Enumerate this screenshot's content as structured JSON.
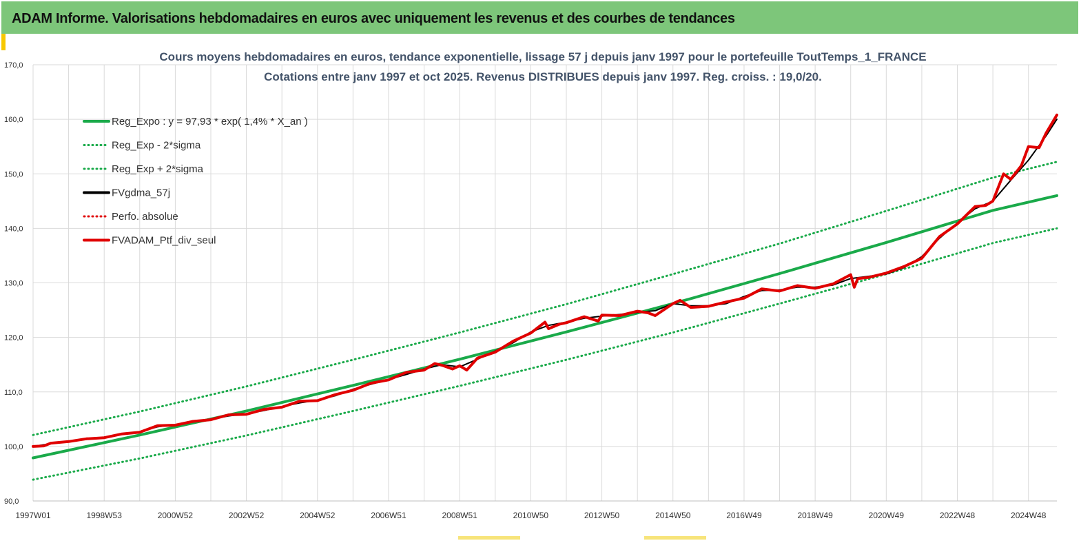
{
  "header": {
    "title": "ADAM Informe. Valorisations hebdomadaires en euros avec uniquement les revenus et des courbes de tendances",
    "background": "#7dc67a"
  },
  "chart_data": {
    "type": "line",
    "title": "Cours moyens hebdomadaires  en euros, tendance exponentielle, lissage 57 j depuis janv 1997 pour le portefeuille ToutTemps_1_FRANCE",
    "subtitle": "Cotations  entre janv 1997 et oct 2025. Revenus DISTRIBUES  depuis janv 1997. Reg. croiss. : 19,0/20.",
    "xlabel": "",
    "ylabel": "",
    "ylim": [
      90,
      170
    ],
    "xlim": [
      1997.0,
      2025.8
    ],
    "grid": true,
    "legend_position": "top-left",
    "x_tick_labels": [
      "1997W01",
      "1998W53",
      "2000W52",
      "2002W52",
      "2004W52",
      "2006W51",
      "2008W51",
      "2010W50",
      "2012W50",
      "2014W50",
      "2016W49",
      "2018W49",
      "2020W49",
      "2022W48",
      "2024W48"
    ],
    "x_tick_values": [
      1997.0,
      1999.0,
      2001.0,
      2003.0,
      2005.0,
      2007.0,
      2009.0,
      2011.0,
      2013.0,
      2015.0,
      2017.0,
      2019.0,
      2021.0,
      2023.0,
      2025.0
    ],
    "y_tick_labels": [
      "90,0",
      "100,0",
      "110,0",
      "120,0",
      "130,0",
      "140,0",
      "150,0",
      "160,0",
      "170,0"
    ],
    "y_tick_values": [
      90,
      100,
      110,
      120,
      130,
      140,
      150,
      160,
      170
    ],
    "series": [
      {
        "name": "Reg_Expo : y = 97,93 * exp( 1,4% *  X_an )",
        "style": "solid",
        "color": "#1aaa4a",
        "x": [
          1997.0,
          2000.0,
          2003.0,
          2006.0,
          2009.0,
          2012.0,
          2015.0,
          2018.0,
          2021.0,
          2024.0,
          2025.8
        ],
        "y": [
          97.9,
          102.1,
          106.5,
          111.2,
          116.0,
          121.0,
          126.2,
          131.7,
          137.4,
          143.3,
          146.0
        ]
      },
      {
        "name": "Reg_Exp - 2*sigma",
        "style": "dotted",
        "color": "#1aaa4a",
        "x": [
          1997.0,
          2000.0,
          2003.0,
          2006.0,
          2009.0,
          2012.0,
          2015.0,
          2018.0,
          2021.0,
          2024.0,
          2025.8
        ],
        "y": [
          93.9,
          97.8,
          102.0,
          106.5,
          111.1,
          115.9,
          120.9,
          126.2,
          131.6,
          137.3,
          140.0
        ]
      },
      {
        "name": "Reg_Exp + 2*sigma",
        "style": "dotted",
        "color": "#1aaa4a",
        "x": [
          1997.0,
          2000.0,
          2003.0,
          2006.0,
          2009.0,
          2012.0,
          2015.0,
          2018.0,
          2021.0,
          2024.0,
          2025.8
        ],
        "y": [
          102.1,
          106.4,
          111.0,
          115.9,
          120.9,
          126.1,
          131.6,
          137.2,
          143.2,
          149.3,
          152.2
        ]
      },
      {
        "name": "FVgdma_57j",
        "style": "solid",
        "color": "#000000",
        "x": [
          1997.0,
          1997.5,
          1998.0,
          1998.5,
          1999.0,
          1999.5,
          2000.0,
          2000.5,
          2001.0,
          2001.5,
          2002.0,
          2002.5,
          2003.0,
          2003.5,
          2004.0,
          2004.5,
          2005.0,
          2005.5,
          2006.0,
          2006.5,
          2007.0,
          2007.5,
          2008.0,
          2008.5,
          2009.0,
          2009.5,
          2010.0,
          2010.5,
          2011.0,
          2011.5,
          2012.0,
          2012.5,
          2013.0,
          2013.5,
          2014.0,
          2014.5,
          2015.0,
          2015.5,
          2016.0,
          2016.5,
          2017.0,
          2017.5,
          2018.0,
          2018.5,
          2019.0,
          2019.5,
          2020.0,
          2020.5,
          2021.0,
          2021.5,
          2022.0,
          2022.5,
          2023.0,
          2023.5,
          2024.0,
          2024.5,
          2025.0,
          2025.5,
          2025.8
        ],
        "y": [
          100.0,
          100.5,
          100.9,
          101.3,
          101.7,
          102.2,
          102.7,
          103.6,
          104.0,
          104.5,
          105.0,
          105.6,
          106.0,
          106.6,
          107.3,
          108.0,
          108.5,
          109.3,
          110.5,
          111.4,
          112.3,
          113.2,
          114.2,
          115.0,
          114.6,
          116.0,
          117.5,
          119.0,
          121.0,
          122.2,
          122.8,
          123.5,
          123.9,
          124.2,
          124.6,
          124.9,
          126.2,
          125.8,
          125.8,
          126.2,
          127.5,
          128.6,
          128.7,
          129.2,
          129.2,
          129.6,
          130.8,
          131.2,
          131.6,
          132.8,
          134.8,
          138.2,
          141.0,
          143.6,
          145.0,
          148.8,
          152.5,
          157.0,
          160.0
        ]
      },
      {
        "name": "Perfo. absolue",
        "style": "dotted",
        "color": "#e00000",
        "x": [
          1997.0,
          1997.5,
          1998.0,
          1998.5,
          1999.0,
          1999.5,
          2000.0,
          2000.5,
          2001.0,
          2001.5,
          2002.0,
          2002.5,
          2003.0,
          2003.5,
          2004.0,
          2004.5,
          2005.0,
          2005.5,
          2006.0,
          2006.5,
          2007.0,
          2007.5,
          2008.0,
          2008.5,
          2009.0,
          2009.5,
          2010.0,
          2010.5,
          2011.0,
          2011.5,
          2012.0,
          2012.5,
          2013.0,
          2013.5,
          2014.0,
          2014.5,
          2015.0,
          2015.5,
          2016.0,
          2016.5,
          2017.0,
          2017.5,
          2018.0,
          2018.5,
          2019.0,
          2019.5,
          2020.0,
          2020.5,
          2021.0,
          2021.5,
          2022.0,
          2022.5,
          2023.0,
          2023.5,
          2024.0,
          2024.5,
          2025.0,
          2025.5,
          2025.8
        ],
        "y": [
          100.0,
          100.5,
          100.9,
          101.3,
          101.7,
          102.2,
          102.7,
          103.6,
          104.0,
          104.5,
          105.0,
          105.6,
          106.0,
          106.6,
          107.3,
          108.0,
          108.5,
          109.3,
          110.5,
          111.4,
          112.3,
          113.2,
          114.2,
          115.0,
          114.6,
          116.0,
          117.5,
          119.0,
          121.0,
          122.2,
          122.8,
          123.5,
          123.9,
          124.2,
          124.6,
          124.9,
          126.2,
          125.8,
          125.8,
          126.2,
          127.5,
          128.6,
          128.7,
          129.2,
          129.2,
          129.6,
          130.8,
          131.2,
          131.6,
          132.8,
          134.8,
          138.2,
          141.0,
          143.6,
          145.0,
          148.8,
          152.5,
          157.0,
          160.0
        ]
      },
      {
        "name": "FVADAM_Ptf_div_seul",
        "style": "solid",
        "color": "#e00000",
        "x": [
          1997.0,
          1997.3,
          1997.5,
          1998.0,
          1998.5,
          1999.0,
          1999.5,
          2000.0,
          2000.5,
          2001.0,
          2001.5,
          2002.0,
          2002.5,
          2003.0,
          2003.5,
          2004.0,
          2004.5,
          2005.0,
          2005.5,
          2006.0,
          2006.5,
          2007.0,
          2007.5,
          2008.0,
          2008.3,
          2008.5,
          2008.8,
          2009.0,
          2009.2,
          2009.5,
          2010.0,
          2010.5,
          2011.0,
          2011.4,
          2011.5,
          2011.8,
          2012.0,
          2012.5,
          2012.9,
          2013.0,
          2013.5,
          2014.0,
          2014.3,
          2014.5,
          2015.0,
          2015.2,
          2015.5,
          2016.0,
          2016.5,
          2017.0,
          2017.5,
          2018.0,
          2018.5,
          2019.0,
          2019.5,
          2020.0,
          2020.1,
          2020.2,
          2020.5,
          2021.0,
          2021.5,
          2022.0,
          2022.5,
          2023.0,
          2023.5,
          2023.8,
          2024.0,
          2024.3,
          2024.5,
          2024.8,
          2025.0,
          2025.3,
          2025.5,
          2025.8
        ],
        "y": [
          100.0,
          100.1,
          100.6,
          100.9,
          101.4,
          101.6,
          102.3,
          102.6,
          103.8,
          103.9,
          104.6,
          104.9,
          105.8,
          105.9,
          106.8,
          107.2,
          108.3,
          108.4,
          109.5,
          110.3,
          111.6,
          112.2,
          113.6,
          114.0,
          115.2,
          114.9,
          114.2,
          114.8,
          114.0,
          116.2,
          117.3,
          119.3,
          120.8,
          122.8,
          121.6,
          122.4,
          122.7,
          123.8,
          123.0,
          124.1,
          124.0,
          124.8,
          124.5,
          124.0,
          126.2,
          126.8,
          125.5,
          125.7,
          126.5,
          127.2,
          128.9,
          128.5,
          129.5,
          129.0,
          129.8,
          131.5,
          129.2,
          130.8,
          131.0,
          131.8,
          133.0,
          134.5,
          138.5,
          140.8,
          144.0,
          144.2,
          145.0,
          150.0,
          149.0,
          151.5,
          155.0,
          154.8,
          157.5,
          160.8
        ]
      }
    ],
    "colors": {
      "green": "#1aaa4a",
      "black": "#000000",
      "red": "#e00000",
      "grid": "#d9d9d9",
      "title_text": "#44546a"
    }
  }
}
